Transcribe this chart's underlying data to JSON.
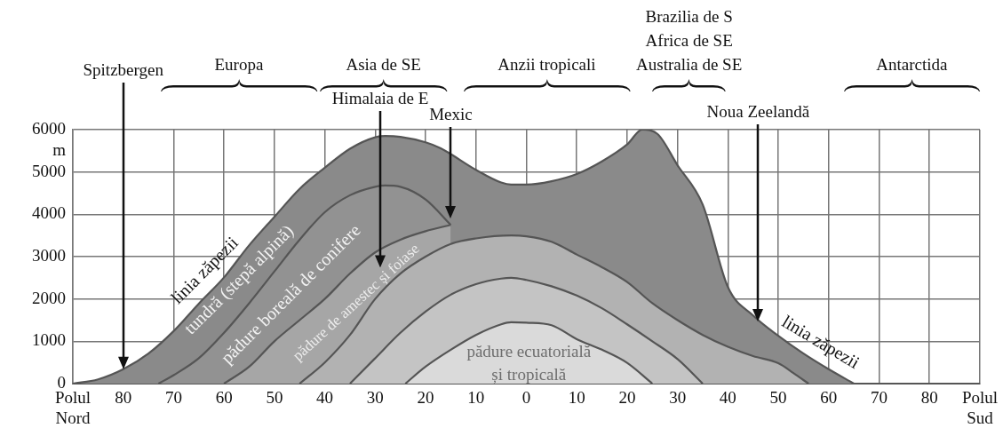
{
  "chart_data": {
    "type": "area",
    "ylabel": "m",
    "xlim": [
      -90,
      90
    ],
    "ylim": [
      0,
      6000
    ],
    "xticks": [
      {
        "value": -90,
        "label": "Polul Nord"
      },
      {
        "value": -80,
        "label": "80"
      },
      {
        "value": -70,
        "label": "70"
      },
      {
        "value": -60,
        "label": "60"
      },
      {
        "value": -50,
        "label": "50"
      },
      {
        "value": -40,
        "label": "40"
      },
      {
        "value": -30,
        "label": "30"
      },
      {
        "value": -20,
        "label": "20"
      },
      {
        "value": -10,
        "label": "10"
      },
      0,
      {
        "value": 10,
        "label": "10"
      },
      {
        "value": 20,
        "label": "20"
      },
      {
        "value": 30,
        "label": "30"
      },
      {
        "value": 40,
        "label": "40"
      },
      {
        "value": 50,
        "label": "50"
      },
      {
        "value": 60,
        "label": "60"
      },
      {
        "value": 70,
        "label": "70"
      },
      {
        "value": 80,
        "label": "80"
      },
      {
        "value": 90,
        "label": "Polul Sud"
      }
    ],
    "yticks": [
      0,
      1000,
      2000,
      3000,
      4000,
      5000,
      6000
    ],
    "grid": true,
    "series": [
      {
        "color": "#8a8a8a",
        "x": [
          -90,
          -85,
          -80,
          -75,
          -70,
          -65,
          -60,
          -55,
          -50,
          -45,
          -40,
          -35,
          -30,
          -28,
          -25,
          -20,
          -17,
          -10,
          -5,
          -3,
          0,
          5,
          10,
          15,
          20,
          23,
          26,
          30,
          35,
          40,
          45,
          50,
          55,
          60,
          65
        ],
        "values": [
          0,
          100,
          340,
          710,
          1240,
          1890,
          2510,
          3270,
          3940,
          4600,
          5100,
          5550,
          5820,
          5850,
          5830,
          5700,
          5560,
          5050,
          4750,
          4700,
          4700,
          4780,
          4950,
          5250,
          5650,
          6000,
          5900,
          5160,
          4230,
          2280,
          1610,
          1130,
          710,
          340,
          0
        ]
      },
      {
        "color": "#929292",
        "x": [
          -73,
          -70,
          -65,
          -60,
          -55,
          -50,
          -45,
          -40,
          -35,
          -30,
          -28,
          -25,
          -20,
          -15
        ],
        "values": [
          0,
          200,
          600,
          1200,
          1900,
          2650,
          3400,
          4050,
          4450,
          4650,
          4680,
          4650,
          4350,
          3750
        ]
      },
      {
        "color": "#a6a6a6",
        "x": [
          -60,
          -55,
          -50,
          -45,
          -40,
          -35,
          -30,
          -25,
          -20,
          -15
        ],
        "values": [
          0,
          400,
          1000,
          1500,
          2000,
          2600,
          3100,
          3400,
          3600,
          3750
        ]
      },
      {
        "color": "#b2b2b2",
        "x": [
          -45,
          -40,
          -35,
          -30,
          -25,
          -20,
          -15,
          -10,
          -3,
          0,
          5,
          10,
          15,
          20,
          25,
          30,
          35,
          40,
          45,
          50,
          53,
          56
        ],
        "values": [
          0,
          500,
          1150,
          2000,
          2600,
          3000,
          3300,
          3430,
          3500,
          3480,
          3350,
          3050,
          2750,
          2400,
          1900,
          1500,
          1150,
          870,
          650,
          480,
          250,
          0
        ]
      },
      {
        "color": "#c4c4c4",
        "x": [
          -35,
          -30,
          -25,
          -20,
          -15,
          -10,
          -5,
          -3,
          0,
          5,
          10,
          15,
          20,
          25,
          30,
          35
        ],
        "values": [
          0,
          600,
          1200,
          1700,
          2100,
          2350,
          2480,
          2500,
          2450,
          2300,
          2080,
          1780,
          1400,
          1000,
          580,
          0
        ]
      },
      {
        "color": "#dadada",
        "x": [
          -24,
          -20,
          -15,
          -10,
          -5,
          -3,
          0,
          5,
          10,
          15,
          20,
          25
        ],
        "values": [
          0,
          400,
          800,
          1150,
          1400,
          1450,
          1440,
          1380,
          1050,
          800,
          490,
          0
        ]
      }
    ],
    "annotations": [
      "Spitzbergen",
      "Himalaia de E",
      "Mexic",
      "Noua Zeelandă",
      "Europa",
      "Asia de SE",
      "Anzii tropicali",
      "Brazilia de S",
      "Africa de SE",
      "Australia de SE",
      "Antarctida",
      "linia zăpezii",
      "tundră (stepă alpină)",
      "pădure boreală de conifere",
      "pădure de amestec și foiase",
      "pădure ecuatorială",
      "și tropicală",
      "linia zăpezii"
    ]
  }
}
